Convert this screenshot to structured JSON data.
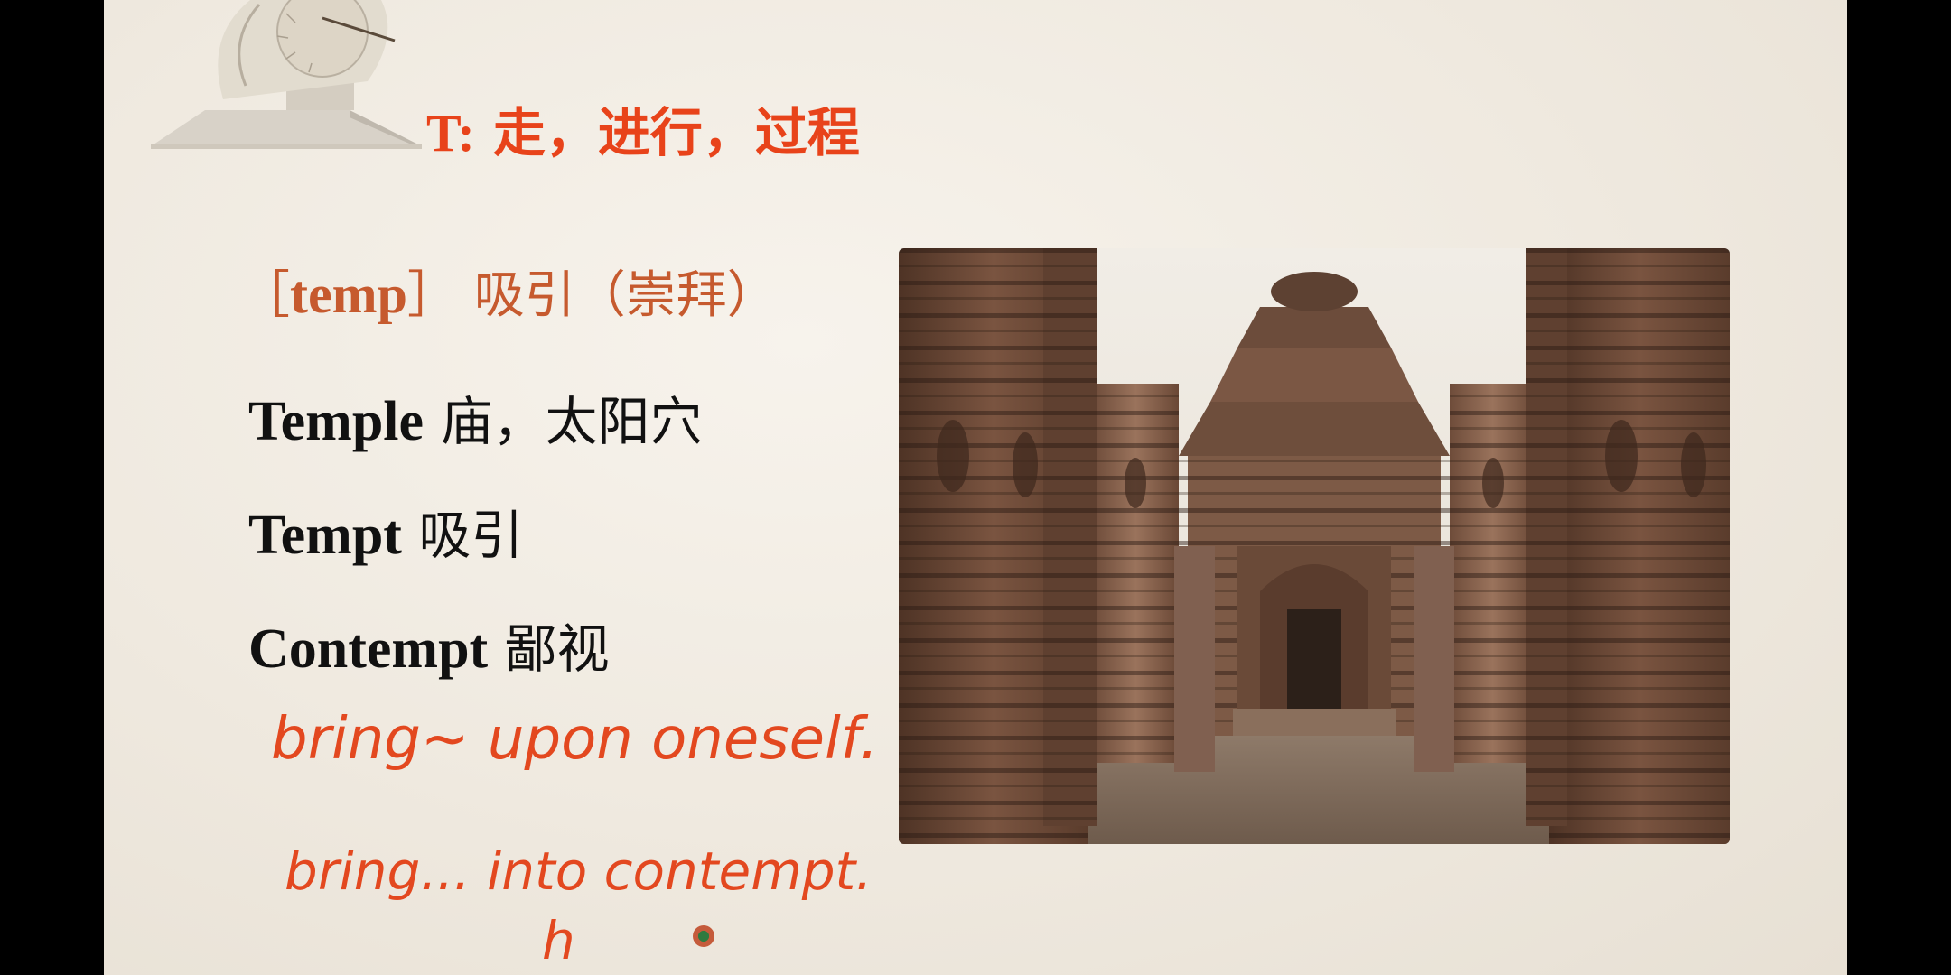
{
  "slide": {
    "title_letter": "T:",
    "title_meaning": "走，进行，过程",
    "root": {
      "bracket_open": "［",
      "root_text": "temp",
      "bracket_close": "］",
      "meaning": "吸引（崇拜）"
    },
    "words": [
      {
        "en": "Temple",
        "zh": "庙，太阳穴"
      },
      {
        "en": "Tempt",
        "zh": "吸引"
      },
      {
        "en": "Contempt",
        "zh": "鄙视"
      }
    ],
    "handwriting": {
      "line1": "bring~ upon oneself.",
      "line2": "bring... into contempt.",
      "line3": "h"
    },
    "colors": {
      "title": "#e8431a",
      "root": "#c65a2e",
      "ink": "#e3481f"
    }
  }
}
